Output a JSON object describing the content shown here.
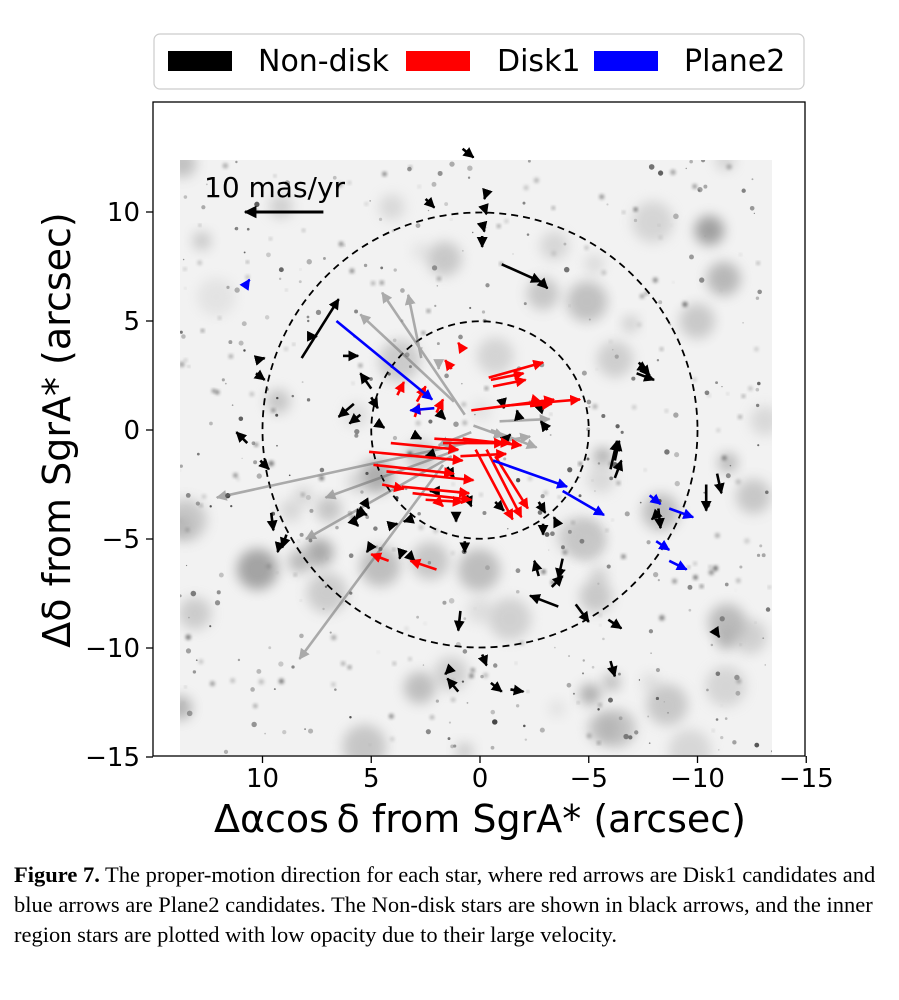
{
  "figure": {
    "legend": [
      {
        "label": "Non-disk",
        "color": "#000000"
      },
      {
        "label": "Disk1",
        "color": "#ff0000"
      },
      {
        "label": "Plane2",
        "color": "#0000ff"
      }
    ],
    "scale_label": "10 mas/yr",
    "caption_label": "Figure 7.",
    "caption_text": " The proper-motion direction for each star, where red arrows are Disk1 candidates and blue arrows are Plane2 candidates. The Non-disk stars are shown in black arrows, and the inner region stars are plotted with low opacity due to their large velocity."
  },
  "chart_data": {
    "type": "scatter",
    "title": "",
    "xlabel": "Δαcos δ from SgrA* (arcsec)",
    "ylabel": "Δδ from SgrA* (arcsec)",
    "xlim": [
      15,
      -15
    ],
    "ylim": [
      -15,
      15
    ],
    "xticks": [
      10,
      5,
      0,
      -5,
      -10,
      -15
    ],
    "xtick_labels": [
      "10",
      "5",
      "0",
      "−5",
      "−10",
      "−15"
    ],
    "yticks": [
      10,
      5,
      0,
      -5,
      -10,
      -15
    ],
    "ytick_labels": [
      "10",
      "5",
      "0",
      "−5",
      "−10",
      "−15"
    ],
    "circles_radii": [
      5,
      10
    ],
    "legend_position": "top (outside)",
    "scale_arrow": {
      "x0": 7.2,
      "y0": 10,
      "x1": 10.8,
      "y1": 10
    },
    "series": [
      {
        "name": "Non-disk",
        "color": "#000000",
        "arrows": [
          [
            0.8,
            12.9,
            0.3,
            12.5
          ],
          [
            2.5,
            10.6,
            2.1,
            10.2
          ],
          [
            -0.3,
            10.9,
            -0.2,
            10.6
          ],
          [
            -0.2,
            10.2,
            -0.3,
            9.9
          ],
          [
            -0.1,
            9.5,
            -0.2,
            9.1
          ],
          [
            -0.1,
            8.9,
            -0.1,
            8.4
          ],
          [
            -1.0,
            7.6,
            -2.8,
            6.8
          ],
          [
            -2.8,
            6.8,
            -3.1,
            6.5
          ],
          [
            8.2,
            3.3,
            6.5,
            6.0
          ],
          [
            7.8,
            4.3,
            7.5,
            4.3
          ],
          [
            10.3,
            3.2,
            9.9,
            3.3
          ],
          [
            10.3,
            2.6,
            9.9,
            2.3
          ],
          [
            6.3,
            3.4,
            5.6,
            3.4
          ],
          [
            5.0,
            1.9,
            5.5,
            2.6
          ],
          [
            5.8,
            1.2,
            6.5,
            0.6
          ],
          [
            5.5,
            0.7,
            6.0,
            0.3
          ],
          [
            5.0,
            1.5,
            4.7,
            1.0
          ],
          [
            4.7,
            0.3,
            4.4,
            0.1
          ],
          [
            10.7,
            -0.6,
            11.2,
            -0.1
          ],
          [
            10.1,
            -1.4,
            9.7,
            -1.8
          ],
          [
            9.6,
            -3.8,
            9.5,
            -4.6
          ],
          [
            9.2,
            -5.2,
            9.3,
            -5.6
          ],
          [
            8.9,
            -4.8,
            9.1,
            -5.4
          ],
          [
            5.6,
            -3.7,
            5.2,
            -3.9
          ],
          [
            5.3,
            -3.3,
            5.1,
            -3.6
          ],
          [
            5.5,
            -3.8,
            5.7,
            -4.1
          ],
          [
            5.8,
            -4.2,
            5.6,
            -4.4
          ],
          [
            5.0,
            -5.3,
            5.2,
            -5.6
          ],
          [
            3.2,
            -4.1,
            3.5,
            -4.2
          ],
          [
            4.2,
            -4.4,
            3.8,
            -4.3
          ],
          [
            3.6,
            -5.6,
            3.7,
            -5.9
          ],
          [
            3.3,
            -5.7,
            3.0,
            -6.0
          ],
          [
            0.7,
            -5.1,
            0.7,
            -5.6
          ],
          [
            1.1,
            -3.9,
            1.1,
            -4.2
          ],
          [
            2.0,
            -2.8,
            2.3,
            -2.8
          ],
          [
            1.5,
            -1.7,
            1.2,
            -2.2
          ],
          [
            2.2,
            -1.1,
            2.5,
            -1.2
          ],
          [
            3.1,
            -0.2,
            2.7,
            -0.4
          ],
          [
            1.9,
            0.8,
            1.6,
            0.5
          ],
          [
            -1.0,
            1.4,
            -1.1,
            1.0
          ],
          [
            -1.2,
            -0.4,
            -1.4,
            -0.2
          ],
          [
            -1.8,
            0.5,
            -1.7,
            0.9
          ],
          [
            -2.8,
            1.0,
            -3.0,
            1.2
          ],
          [
            -3.1,
            0.0,
            -2.8,
            0.4
          ],
          [
            -2.7,
            -3.3,
            -3.0,
            -3.8
          ],
          [
            -2.9,
            -4.3,
            -2.9,
            -4.8
          ],
          [
            -3.5,
            -4.2,
            -3.4,
            -4.0
          ],
          [
            -6.2,
            -1.4,
            -6.4,
            -0.5
          ],
          [
            -6.2,
            -2.2,
            -6.5,
            -1.4
          ],
          [
            -6.0,
            -1.8,
            -6.3,
            -0.5
          ],
          [
            -7.3,
            3.1,
            -7.8,
            2.5
          ],
          [
            -7.2,
            2.6,
            -8.0,
            2.3
          ],
          [
            -7.4,
            2.9,
            -7.7,
            2.7
          ],
          [
            -10.9,
            -2.0,
            -11.1,
            -2.9
          ],
          [
            -10.4,
            -2.5,
            -10.4,
            -3.7
          ],
          [
            -8.2,
            -3.6,
            -8.3,
            -4.5
          ],
          [
            -8.1,
            -3.9,
            -7.9,
            -4.1
          ],
          [
            -3.8,
            -5.9,
            -3.6,
            -6.8
          ],
          [
            -3.3,
            -7.2,
            -3.8,
            -6.7
          ],
          [
            -2.7,
            -6.7,
            -2.5,
            -6.0
          ],
          [
            -3.6,
            -8.1,
            -2.3,
            -7.6
          ],
          [
            -4.4,
            -8.0,
            -5.0,
            -8.8
          ],
          [
            -5.9,
            -8.7,
            -6.5,
            -9.1
          ],
          [
            -10.8,
            -9.2,
            -11.0,
            -9.5
          ],
          [
            -6.0,
            -10.6,
            -6.2,
            -11.3
          ],
          [
            1.0,
            -12.0,
            1.5,
            -11.4
          ],
          [
            1.5,
            -11.1,
            1.6,
            -11.2
          ],
          [
            -0.5,
            -11.6,
            -1.0,
            -12.0
          ],
          [
            -1.4,
            -11.9,
            -2.0,
            -12.0
          ],
          [
            -0.1,
            -10.3,
            -0.3,
            -10.8
          ],
          [
            0.9,
            -8.3,
            1.0,
            -9.2
          ],
          [
            -0.7,
            -3.3,
            -1.1,
            -3.7
          ],
          [
            0.6,
            -3.0,
            0.4,
            -3.5
          ]
        ]
      },
      {
        "name": "Disk1",
        "color": "#ff0000",
        "arrows": [
          [
            2.9,
            1.3,
            2.5,
            2.0
          ],
          [
            3.0,
            0.6,
            2.8,
            1.2
          ],
          [
            3.8,
            1.6,
            3.5,
            2.2
          ],
          [
            2.0,
            0.8,
            1.7,
            1.4
          ],
          [
            1.3,
            2.8,
            1.6,
            3.2
          ],
          [
            0.8,
            3.7,
            1.0,
            4.0
          ],
          [
            -0.4,
            2.4,
            -2.9,
            3.1
          ],
          [
            -0.5,
            2.3,
            -2.0,
            2.6
          ],
          [
            -0.6,
            2.0,
            -2.1,
            2.3
          ],
          [
            0.4,
            0.9,
            -3.4,
            1.4
          ],
          [
            -1.0,
            1.1,
            -4.6,
            1.4
          ],
          [
            -2.4,
            1.4,
            -2.8,
            1.3
          ],
          [
            -2.3,
            1.1,
            -3.3,
            1.2
          ],
          [
            0.8,
            -0.4,
            -1.9,
            -0.7
          ],
          [
            1.7,
            -0.6,
            -1.1,
            -0.6
          ],
          [
            0.9,
            -1.2,
            -1.2,
            -1.1
          ],
          [
            2.1,
            -0.4,
            -1.4,
            -0.6
          ],
          [
            4.1,
            -0.6,
            1.0,
            -0.9
          ],
          [
            5.1,
            -1.0,
            0.8,
            -1.4
          ],
          [
            4.9,
            -1.6,
            1.2,
            -2.0
          ],
          [
            4.3,
            -1.9,
            0.3,
            -2.3
          ],
          [
            3.6,
            -2.6,
            0.5,
            -2.9
          ],
          [
            4.5,
            -2.5,
            3.5,
            -2.7
          ],
          [
            3.1,
            -2.9,
            0.4,
            -3.2
          ],
          [
            2.5,
            -3.2,
            0.8,
            -3.3
          ],
          [
            1.8,
            -3.4,
            1.7,
            -3.5
          ],
          [
            -0.3,
            -0.9,
            -1.9,
            -4.0
          ],
          [
            0.2,
            -0.9,
            -1.5,
            -4.1
          ],
          [
            -0.7,
            -1.2,
            -2.2,
            -3.6
          ],
          [
            4.2,
            -6.0,
            5.0,
            -5.7
          ],
          [
            2.0,
            -6.4,
            3.2,
            -6.0
          ]
        ]
      },
      {
        "name": "Plane2",
        "color": "#0000ff",
        "arrows": [
          [
            10.8,
            6.6,
            10.6,
            6.9
          ],
          [
            6.6,
            5.0,
            2.2,
            1.4
          ],
          [
            2.1,
            1.0,
            3.2,
            0.9
          ],
          [
            -0.6,
            -1.4,
            -4.0,
            -2.6
          ],
          [
            -3.8,
            -2.8,
            -5.7,
            -3.9
          ],
          [
            -7.8,
            -3.0,
            -8.3,
            -3.4
          ],
          [
            -8.7,
            -3.6,
            -9.8,
            -4.0
          ],
          [
            -8.1,
            -5.1,
            -8.7,
            -5.5
          ],
          [
            -8.7,
            -6.0,
            -9.5,
            -6.4
          ]
        ]
      },
      {
        "name": "Inner region",
        "color": "#707070",
        "arrows": [
          [
            2.7,
            3.3,
            3.3,
            6.2
          ],
          [
            1.9,
            3.0,
            1.9,
            2.8
          ],
          [
            0.7,
            0.7,
            4.5,
            6.3
          ],
          [
            1.2,
            1.3,
            5.5,
            5.3
          ],
          [
            -0.5,
            -0.6,
            -2.3,
            -0.3
          ],
          [
            0.6,
            -0.6,
            12.1,
            -3.1
          ],
          [
            1.0,
            -0.9,
            7.1,
            -3.1
          ],
          [
            1.3,
            -1.2,
            8.0,
            -5.0
          ],
          [
            1.7,
            -1.6,
            8.3,
            -10.5
          ],
          [
            -0.9,
            0.4,
            -3.2,
            0.5
          ],
          [
            0.3,
            0.2,
            -1.1,
            -0.3
          ],
          [
            -0.5,
            0.0,
            -2.6,
            -0.8
          ],
          [
            0.4,
            -0.1,
            1.9,
            -0.7
          ]
        ]
      }
    ]
  }
}
